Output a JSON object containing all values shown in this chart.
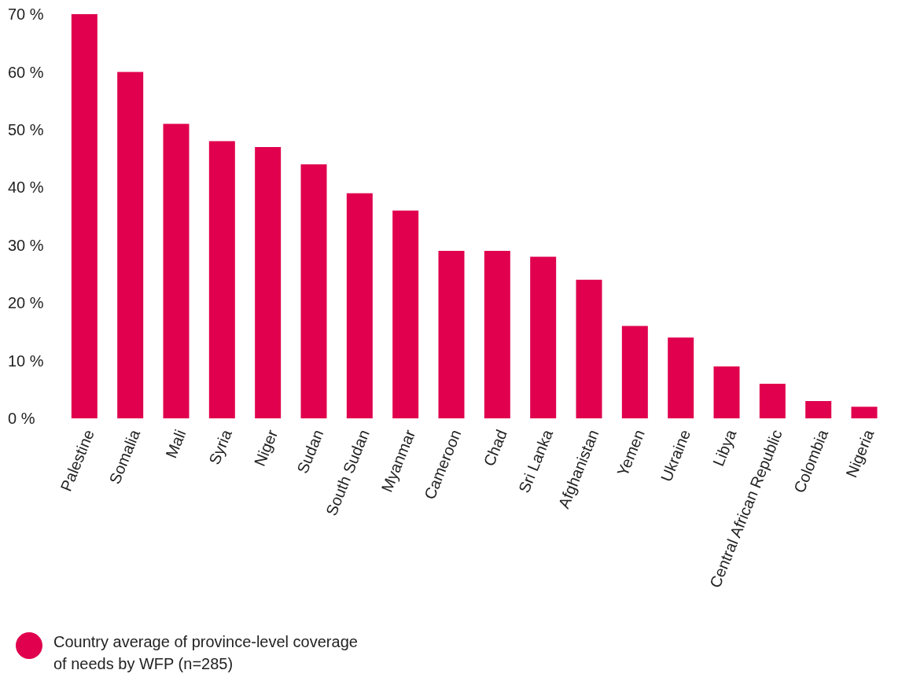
{
  "chart_data": {
    "type": "bar",
    "categories": [
      "Palestine",
      "Somalia",
      "Mali",
      "Syria",
      "Niger",
      "Sudan",
      "South Sudan",
      "Myanmar",
      "Cameroon",
      "Chad",
      "Sri Lanka",
      "Afghanistan",
      "Yemen",
      "Ukraine",
      "Libya",
      "Central African Republic",
      "Colombia",
      "Nigeria"
    ],
    "series": [
      {
        "name": "Country average of province-level coverage of needs by WFP (n=285)",
        "color": "#e0004d",
        "values": [
          70,
          60,
          51,
          48,
          47,
          44,
          39,
          36,
          29,
          29,
          28,
          24,
          16,
          14,
          9,
          6,
          3,
          2
        ]
      }
    ],
    "ylim": [
      0,
      70
    ],
    "yticks": [
      {
        "value": 0,
        "label": "0 %"
      },
      {
        "value": 10,
        "label": "10 %"
      },
      {
        "value": 20,
        "label": "20 %"
      },
      {
        "value": 30,
        "label": "30 %"
      },
      {
        "value": 40,
        "label": "40 %"
      },
      {
        "value": 50,
        "label": "50 %"
      },
      {
        "value": 60,
        "label": "60 %"
      },
      {
        "value": 70,
        "label": "70 %"
      }
    ],
    "grid": false,
    "legend": "bottom left"
  }
}
